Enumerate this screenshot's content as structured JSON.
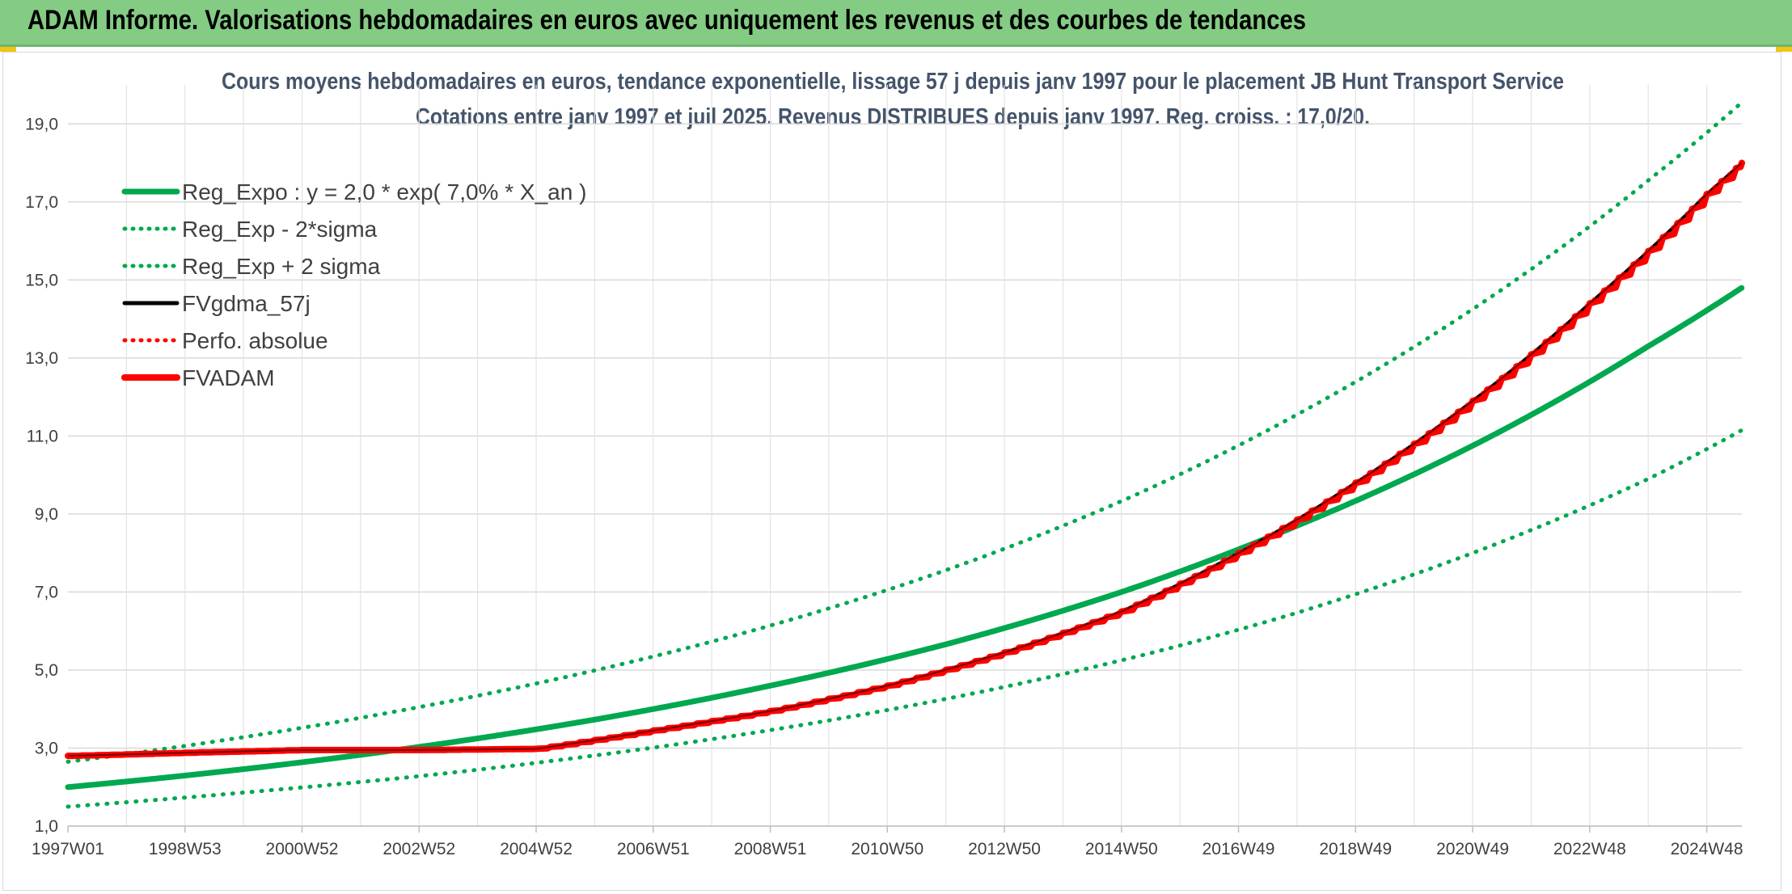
{
  "banner": {
    "title": "ADAM Informe. Valorisations hebdomadaires en euros avec uniquement les revenus et des courbes de tendances"
  },
  "colors": {
    "banner_bg": "#84cb84",
    "green": "#00a84f",
    "red": "#ff0000",
    "black": "#000000",
    "accent_yellow": "#f2c414"
  },
  "chart_data": {
    "type": "line",
    "title": "Cours moyens hebdomadaires en euros, tendance exponentielle, lissage 57 j depuis janv 1997 pour le placement JB Hunt Transport Service",
    "subtitle": "Cotations entre janv 1997 et juil 2025. Revenus DISTRIBUES depuis janv 1997. Reg. croiss. : 17,0/20.",
    "xlabel": "",
    "ylabel": "",
    "ylim": [
      1,
      20
    ],
    "xlim": [
      1997.0,
      2025.6
    ],
    "grid": true,
    "legend_position": "top-left",
    "y_ticks": [
      "1,0",
      "3,0",
      "5,0",
      "7,0",
      "9,0",
      "11,0",
      "13,0",
      "15,0",
      "17,0",
      "19,0"
    ],
    "x_ticks": [
      {
        "label": "1997W01",
        "t": 1997.0
      },
      {
        "label": "1998W53",
        "t": 1999.0
      },
      {
        "label": "2000W52",
        "t": 2001.0
      },
      {
        "label": "2002W52",
        "t": 2003.0
      },
      {
        "label": "2004W52",
        "t": 2005.0
      },
      {
        "label": "2006W51",
        "t": 2007.0
      },
      {
        "label": "2008W51",
        "t": 2009.0
      },
      {
        "label": "2010W50",
        "t": 2011.0
      },
      {
        "label": "2012W50",
        "t": 2013.0
      },
      {
        "label": "2014W50",
        "t": 2015.0
      },
      {
        "label": "2016W49",
        "t": 2017.0
      },
      {
        "label": "2018W49",
        "t": 2019.0
      },
      {
        "label": "2020W49",
        "t": 2021.0
      },
      {
        "label": "2022W48",
        "t": 2023.0
      },
      {
        "label": "2024W48",
        "t": 2025.0
      }
    ],
    "series": [
      {
        "name": "Reg_Expo : y = 2,0 * exp( 7,0% *  X_an )",
        "style": "solid-thick",
        "color": "#00a84f",
        "x": [
          1997.0,
          2000.0,
          2003.0,
          2006.0,
          2009.0,
          2012.0,
          2015.0,
          2018.0,
          2021.0,
          2024.0,
          2025.6
        ],
        "values": [
          2.0,
          2.46,
          3.03,
          3.73,
          4.6,
          5.66,
          7.0,
          8.7,
          10.75,
          13.3,
          14.8
        ]
      },
      {
        "name": "Reg_Exp - 2*sigma",
        "style": "dotted",
        "color": "#00a84f",
        "x": [
          1997.0,
          2000.0,
          2003.0,
          2006.0,
          2009.0,
          2012.0,
          2015.0,
          2018.0,
          2021.0,
          2024.0,
          2025.6
        ],
        "values": [
          1.5,
          1.86,
          2.28,
          2.81,
          3.46,
          4.26,
          5.25,
          6.47,
          8.0,
          9.9,
          11.15
        ]
      },
      {
        "name": "Reg_Exp + 2 sigma",
        "style": "dotted",
        "color": "#00a84f",
        "x": [
          1997.0,
          2000.0,
          2003.0,
          2006.0,
          2009.0,
          2012.0,
          2015.0,
          2018.0,
          2021.0,
          2024.0,
          2025.6
        ],
        "values": [
          2.65,
          3.28,
          4.05,
          4.99,
          6.14,
          7.56,
          9.33,
          11.55,
          14.25,
          17.55,
          19.55
        ]
      },
      {
        "name": "FVgdma_57j",
        "style": "solid",
        "color": "#000000",
        "x": [
          1997.0,
          1999.0,
          2001.0,
          2003.0,
          2005.0,
          2007.0,
          2009.0,
          2011.0,
          2013.0,
          2015.0,
          2017.0,
          2019.0,
          2021.0,
          2023.0,
          2025.0,
          2025.6
        ],
        "values": [
          2.8,
          2.88,
          2.95,
          2.95,
          2.98,
          3.45,
          3.95,
          4.6,
          5.45,
          6.5,
          8.0,
          9.8,
          11.9,
          14.4,
          17.2,
          18.0
        ]
      },
      {
        "name": "Perfo. absolue",
        "style": "dotted",
        "color": "#ff0000",
        "x": [
          1997.0,
          1999.0,
          2001.0,
          2003.0,
          2005.0,
          2007.0,
          2009.0,
          2011.0,
          2013.0,
          2015.0,
          2017.0,
          2019.0,
          2021.0,
          2023.0,
          2025.0,
          2025.6
        ],
        "values": [
          2.8,
          2.88,
          2.95,
          2.95,
          2.98,
          3.45,
          3.95,
          4.6,
          5.45,
          6.5,
          8.0,
          9.8,
          11.9,
          14.4,
          17.2,
          18.0
        ]
      },
      {
        "name": "FVADAM",
        "style": "steps-thick",
        "color": "#ff0000",
        "x": [
          1997.0,
          1999.0,
          2001.0,
          2003.0,
          2005.0,
          2007.0,
          2009.0,
          2011.0,
          2013.0,
          2015.0,
          2017.0,
          2019.0,
          2021.0,
          2023.0,
          2025.0,
          2025.6
        ],
        "values": [
          2.8,
          2.88,
          2.95,
          2.95,
          2.98,
          3.45,
          3.95,
          4.6,
          5.45,
          6.5,
          8.0,
          9.8,
          11.9,
          14.4,
          17.2,
          18.0
        ]
      }
    ]
  }
}
